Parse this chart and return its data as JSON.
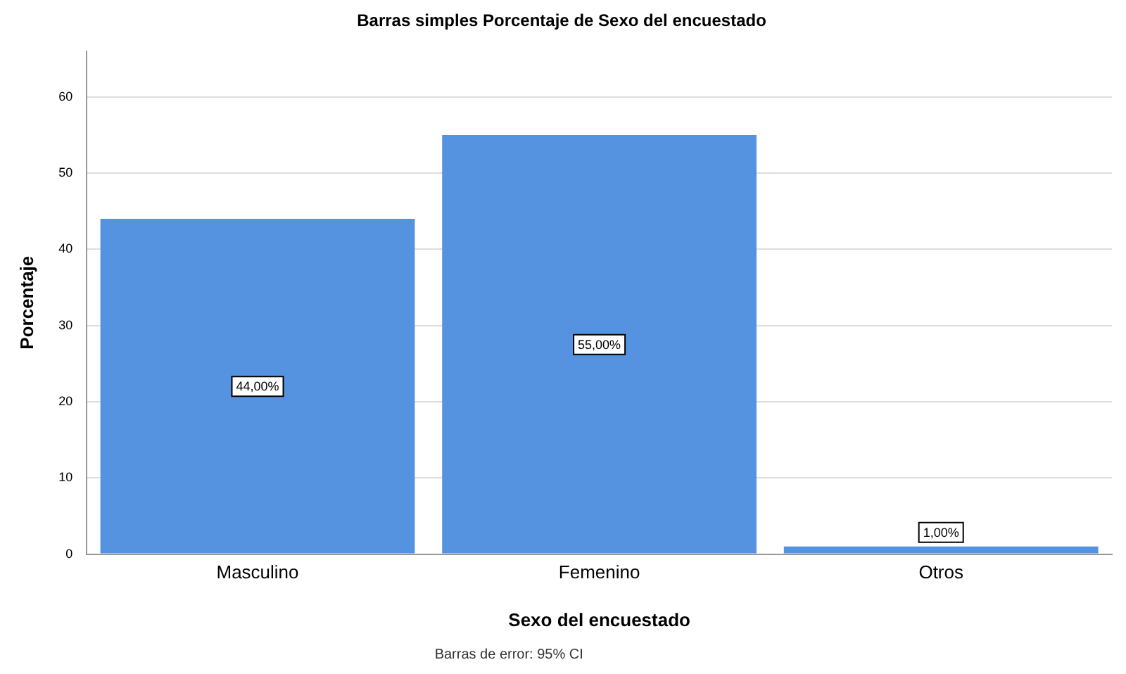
{
  "chart_data": {
    "type": "bar",
    "title": "Barras simples Porcentaje de Sexo del encuestado",
    "xlabel": "Sexo del encuestado",
    "ylabel": "Porcentaje",
    "categories": [
      "Masculino",
      "Femenino",
      "Otros"
    ],
    "values": [
      44,
      55,
      1
    ],
    "value_labels": [
      "44,00%",
      "55,00%",
      "1,00%"
    ],
    "color": "#5592e0",
    "ylim": [
      0,
      66
    ],
    "yticks": [
      0,
      10,
      20,
      30,
      40,
      50,
      60
    ],
    "grid": "y",
    "legend": false,
    "annotations": [
      "Barras de error: 95% CI"
    ]
  }
}
